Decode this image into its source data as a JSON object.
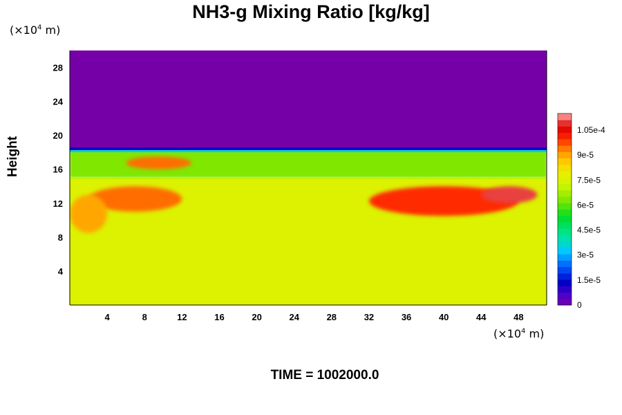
{
  "chart_data": {
    "type": "heatmap",
    "title": "NH3-g Mixing Ratio [kg/kg]",
    "ylabel": "Height",
    "x_unit": {
      "prefix": "(×10",
      "exp": "4",
      "suffix": " m)"
    },
    "y_unit": {
      "prefix": "(×10",
      "exp": "4",
      "suffix": " m)"
    },
    "x_ticks": [
      4,
      8,
      12,
      16,
      20,
      24,
      28,
      32,
      36,
      40,
      44,
      48
    ],
    "y_ticks": [
      4,
      8,
      12,
      16,
      20,
      24,
      28
    ],
    "xlim": [
      0,
      51
    ],
    "ylim": [
      0,
      30
    ],
    "colorbar": {
      "vmin": 0,
      "vmax": 0.000115,
      "ticks": [
        {
          "value": 0,
          "label": "0"
        },
        {
          "value": 1.5e-05,
          "label": "1.5e-5"
        },
        {
          "value": 3e-05,
          "label": "3e-5"
        },
        {
          "value": 4.5e-05,
          "label": "4.5e-5"
        },
        {
          "value": 6e-05,
          "label": "6e-5"
        },
        {
          "value": 7.5e-05,
          "label": "7.5e-5"
        },
        {
          "value": 9e-05,
          "label": "9e-5"
        },
        {
          "value": 0.000105,
          "label": "1.05e-4"
        }
      ]
    },
    "field_regions": {
      "upper_layer": {
        "y_from": 18.5,
        "y_to": 30,
        "value": 0
      },
      "lower_layer": {
        "y_from": 0,
        "y_to": 15,
        "value": 7.6e-05
      },
      "transition_layer": {
        "y_from": 15,
        "y_to": 18.5,
        "value": 6.3e-05
      },
      "high_value_bands": [
        {
          "x": [
            2,
            12
          ],
          "y": [
            11,
            14
          ],
          "value": 9.5e-05
        },
        {
          "x": [
            6,
            13
          ],
          "y": [
            16,
            17.5
          ],
          "value": 9.5e-05
        },
        {
          "x": [
            32,
            48
          ],
          "y": [
            10.5,
            14
          ],
          "value": 0.0001
        },
        {
          "x": [
            44,
            50
          ],
          "y": [
            12,
            14
          ],
          "value": 0.00011
        },
        {
          "x": [
            0,
            4
          ],
          "y": [
            8.5,
            13
          ],
          "value": 9e-05
        }
      ]
    },
    "time_label": "TIME = 1002000.0"
  }
}
